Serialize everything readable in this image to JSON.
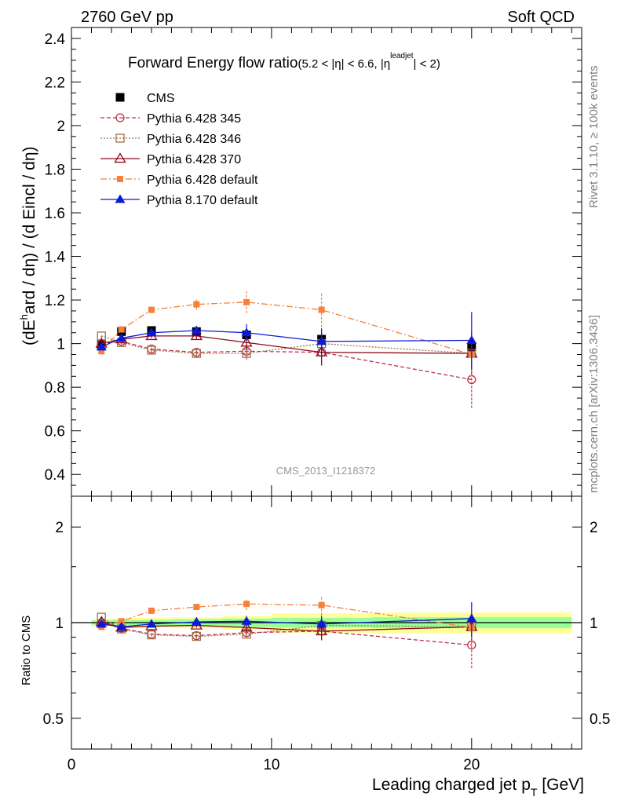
{
  "header": {
    "left": "2760 GeV pp",
    "right": "Soft QCD"
  },
  "side": {
    "rivet": "Rivet 3.1.10, ≥ 100k events",
    "mcplots": "mcplots.cern.ch [arXiv:1306.3436]"
  },
  "main_panel": {
    "title": "Forward Energy flow ratio",
    "title_cut": "(5.2 < |η| < 6.6, |η",
    "title_cut_sup": "leadjet",
    "title_cut_end": "| < 2)",
    "ylabel_a": "(dE",
    "ylabel_sup": "h",
    "ylabel_b": "ard / dη) / (d E",
    "ylabel_c": "incl / dη)",
    "watermark": "CMS_2013_I1218372",
    "ytick_labels": [
      "0.4",
      "0.6",
      "0.8",
      "1",
      "1.2",
      "1.4",
      "1.6",
      "1.8",
      "2",
      "2.2",
      "2.4"
    ]
  },
  "ratio_panel": {
    "ylabel": "Ratio to CMS",
    "ytick_labels": [
      "0.5",
      "1",
      "2"
    ]
  },
  "x_axis": {
    "label": "Leading charged jet p",
    "label_sub": "T",
    "label_unit": " [GeV]",
    "tick_labels": [
      "0",
      "10",
      "20"
    ]
  },
  "chart_data": [
    {
      "type": "scatter",
      "panel": "main",
      "title": "Forward Energy flow ratio (5.2 < |η| < 6.6, |η leadjet| < 2)",
      "xlabel": "Leading charged jet pT [GeV]",
      "ylabel": "(dE hard / dη) / (d E incl / dη)",
      "xlim": [
        0,
        25.5
      ],
      "ylim": [
        0.3,
        2.45
      ],
      "legend_position": "top-left",
      "series": [
        {
          "name": "CMS",
          "color": "#000000",
          "marker": "filled-square",
          "line": "none",
          "x": [
            1.5,
            2.5,
            4,
            6.25,
            8.75,
            12.5,
            20
          ],
          "y": [
            0.995,
            1.055,
            1.06,
            1.055,
            1.04,
            1.02,
            0.985
          ],
          "err": [
            0.02,
            0.02,
            0.02,
            0.02,
            0.02,
            0.03,
            0.05
          ]
        },
        {
          "name": "Pythia 6.428 345",
          "color": "#c0304a",
          "marker": "open-circle",
          "line": "dashed",
          "x": [
            1.5,
            2.5,
            4,
            6.25,
            8.75,
            12.5,
            20
          ],
          "y": [
            1.0,
            1.01,
            0.975,
            0.96,
            0.965,
            0.96,
            0.835
          ],
          "err": [
            0.01,
            0.01,
            0.01,
            0.015,
            0.03,
            0.06,
            0.13
          ]
        },
        {
          "name": "Pythia 6.428 346",
          "color": "#a0704a",
          "marker": "open-square",
          "line": "dotted",
          "x": [
            1.5,
            2.5,
            4,
            6.25,
            8.75,
            12.5,
            20
          ],
          "y": [
            1.035,
            1.005,
            0.97,
            0.955,
            0.955,
            1.0,
            0.955
          ],
          "err": [
            0.01,
            0.01,
            0.01,
            0.015,
            0.03,
            0.05,
            0.08
          ]
        },
        {
          "name": "Pythia 6.428 370",
          "color": "#8b0a1a",
          "marker": "open-triangle",
          "line": "solid",
          "x": [
            1.5,
            2.5,
            4,
            6.25,
            8.75,
            12.5,
            20
          ],
          "y": [
            1.0,
            1.02,
            1.035,
            1.035,
            1.005,
            0.96,
            0.955
          ],
          "err": [
            0.01,
            0.01,
            0.01,
            0.015,
            0.03,
            0.06,
            0.1
          ]
        },
        {
          "name": "Pythia 6.428 default",
          "color": "#f5813a",
          "marker": "filled-square-small",
          "line": "dashdot",
          "x": [
            1.5,
            2.5,
            4,
            6.25,
            8.75,
            12.5,
            20
          ],
          "y": [
            0.965,
            1.065,
            1.155,
            1.18,
            1.19,
            1.155,
            0.95
          ],
          "err": [
            0.01,
            0.01,
            0.015,
            0.025,
            0.05,
            0.08,
            0.1
          ]
        },
        {
          "name": "Pythia 8.170 default",
          "color": "#0a1ad8",
          "marker": "filled-triangle",
          "line": "solid",
          "x": [
            1.5,
            2.5,
            4,
            6.25,
            8.75,
            12.5,
            20
          ],
          "y": [
            0.985,
            1.025,
            1.05,
            1.06,
            1.05,
            1.01,
            1.015
          ],
          "err": [
            0.01,
            0.01,
            0.015,
            0.02,
            0.04,
            0.06,
            0.13
          ]
        }
      ]
    },
    {
      "type": "scatter",
      "panel": "ratio",
      "ylabel": "Ratio to CMS",
      "ylog": true,
      "xlim": [
        0,
        25.5
      ],
      "ylim": [
        0.4,
        2.5
      ],
      "reference_line": 1,
      "bands": {
        "x_edges": [
          1,
          2,
          3,
          5,
          7.5,
          10,
          15,
          25
        ],
        "yellow_half": [
          0.025,
          0.03,
          0.035,
          0.04,
          0.05,
          0.07,
          0.075
        ],
        "green_half": [
          0.015,
          0.02,
          0.02,
          0.025,
          0.03,
          0.035,
          0.04
        ],
        "yellow_color": "#ffff99",
        "green_color": "#99ff99"
      },
      "series": [
        {
          "name": "Pythia 6.428 345",
          "x": [
            1.5,
            2.5,
            4,
            6.25,
            8.75,
            12.5,
            20
          ],
          "y": [
            1.0,
            0.96,
            0.92,
            0.91,
            0.93,
            0.94,
            0.85
          ],
          "err": [
            0.01,
            0.01,
            0.01,
            0.015,
            0.03,
            0.06,
            0.13
          ]
        },
        {
          "name": "Pythia 6.428 346",
          "x": [
            1.5,
            2.5,
            4,
            6.25,
            8.75,
            12.5,
            20
          ],
          "y": [
            1.04,
            0.955,
            0.915,
            0.905,
            0.92,
            0.98,
            0.97
          ],
          "err": [
            0.01,
            0.01,
            0.01,
            0.015,
            0.03,
            0.05,
            0.08
          ]
        },
        {
          "name": "Pythia 6.428 370",
          "x": [
            1.5,
            2.5,
            4,
            6.25,
            8.75,
            12.5,
            20
          ],
          "y": [
            1.005,
            0.965,
            0.975,
            0.98,
            0.965,
            0.94,
            0.97
          ],
          "err": [
            0.01,
            0.01,
            0.01,
            0.015,
            0.03,
            0.06,
            0.1
          ]
        },
        {
          "name": "Pythia 6.428 default",
          "x": [
            1.5,
            2.5,
            4,
            6.25,
            8.75,
            12.5,
            20
          ],
          "y": [
            0.97,
            1.01,
            1.09,
            1.12,
            1.145,
            1.135,
            0.965
          ],
          "err": [
            0.01,
            0.01,
            0.015,
            0.025,
            0.05,
            0.08,
            0.1
          ]
        },
        {
          "name": "Pythia 8.170 default",
          "x": [
            1.5,
            2.5,
            4,
            6.25,
            8.75,
            12.5,
            20
          ],
          "y": [
            0.99,
            0.97,
            0.99,
            1.005,
            1.01,
            0.99,
            1.03
          ],
          "err": [
            0.01,
            0.01,
            0.015,
            0.02,
            0.04,
            0.06,
            0.13
          ]
        }
      ]
    }
  ]
}
